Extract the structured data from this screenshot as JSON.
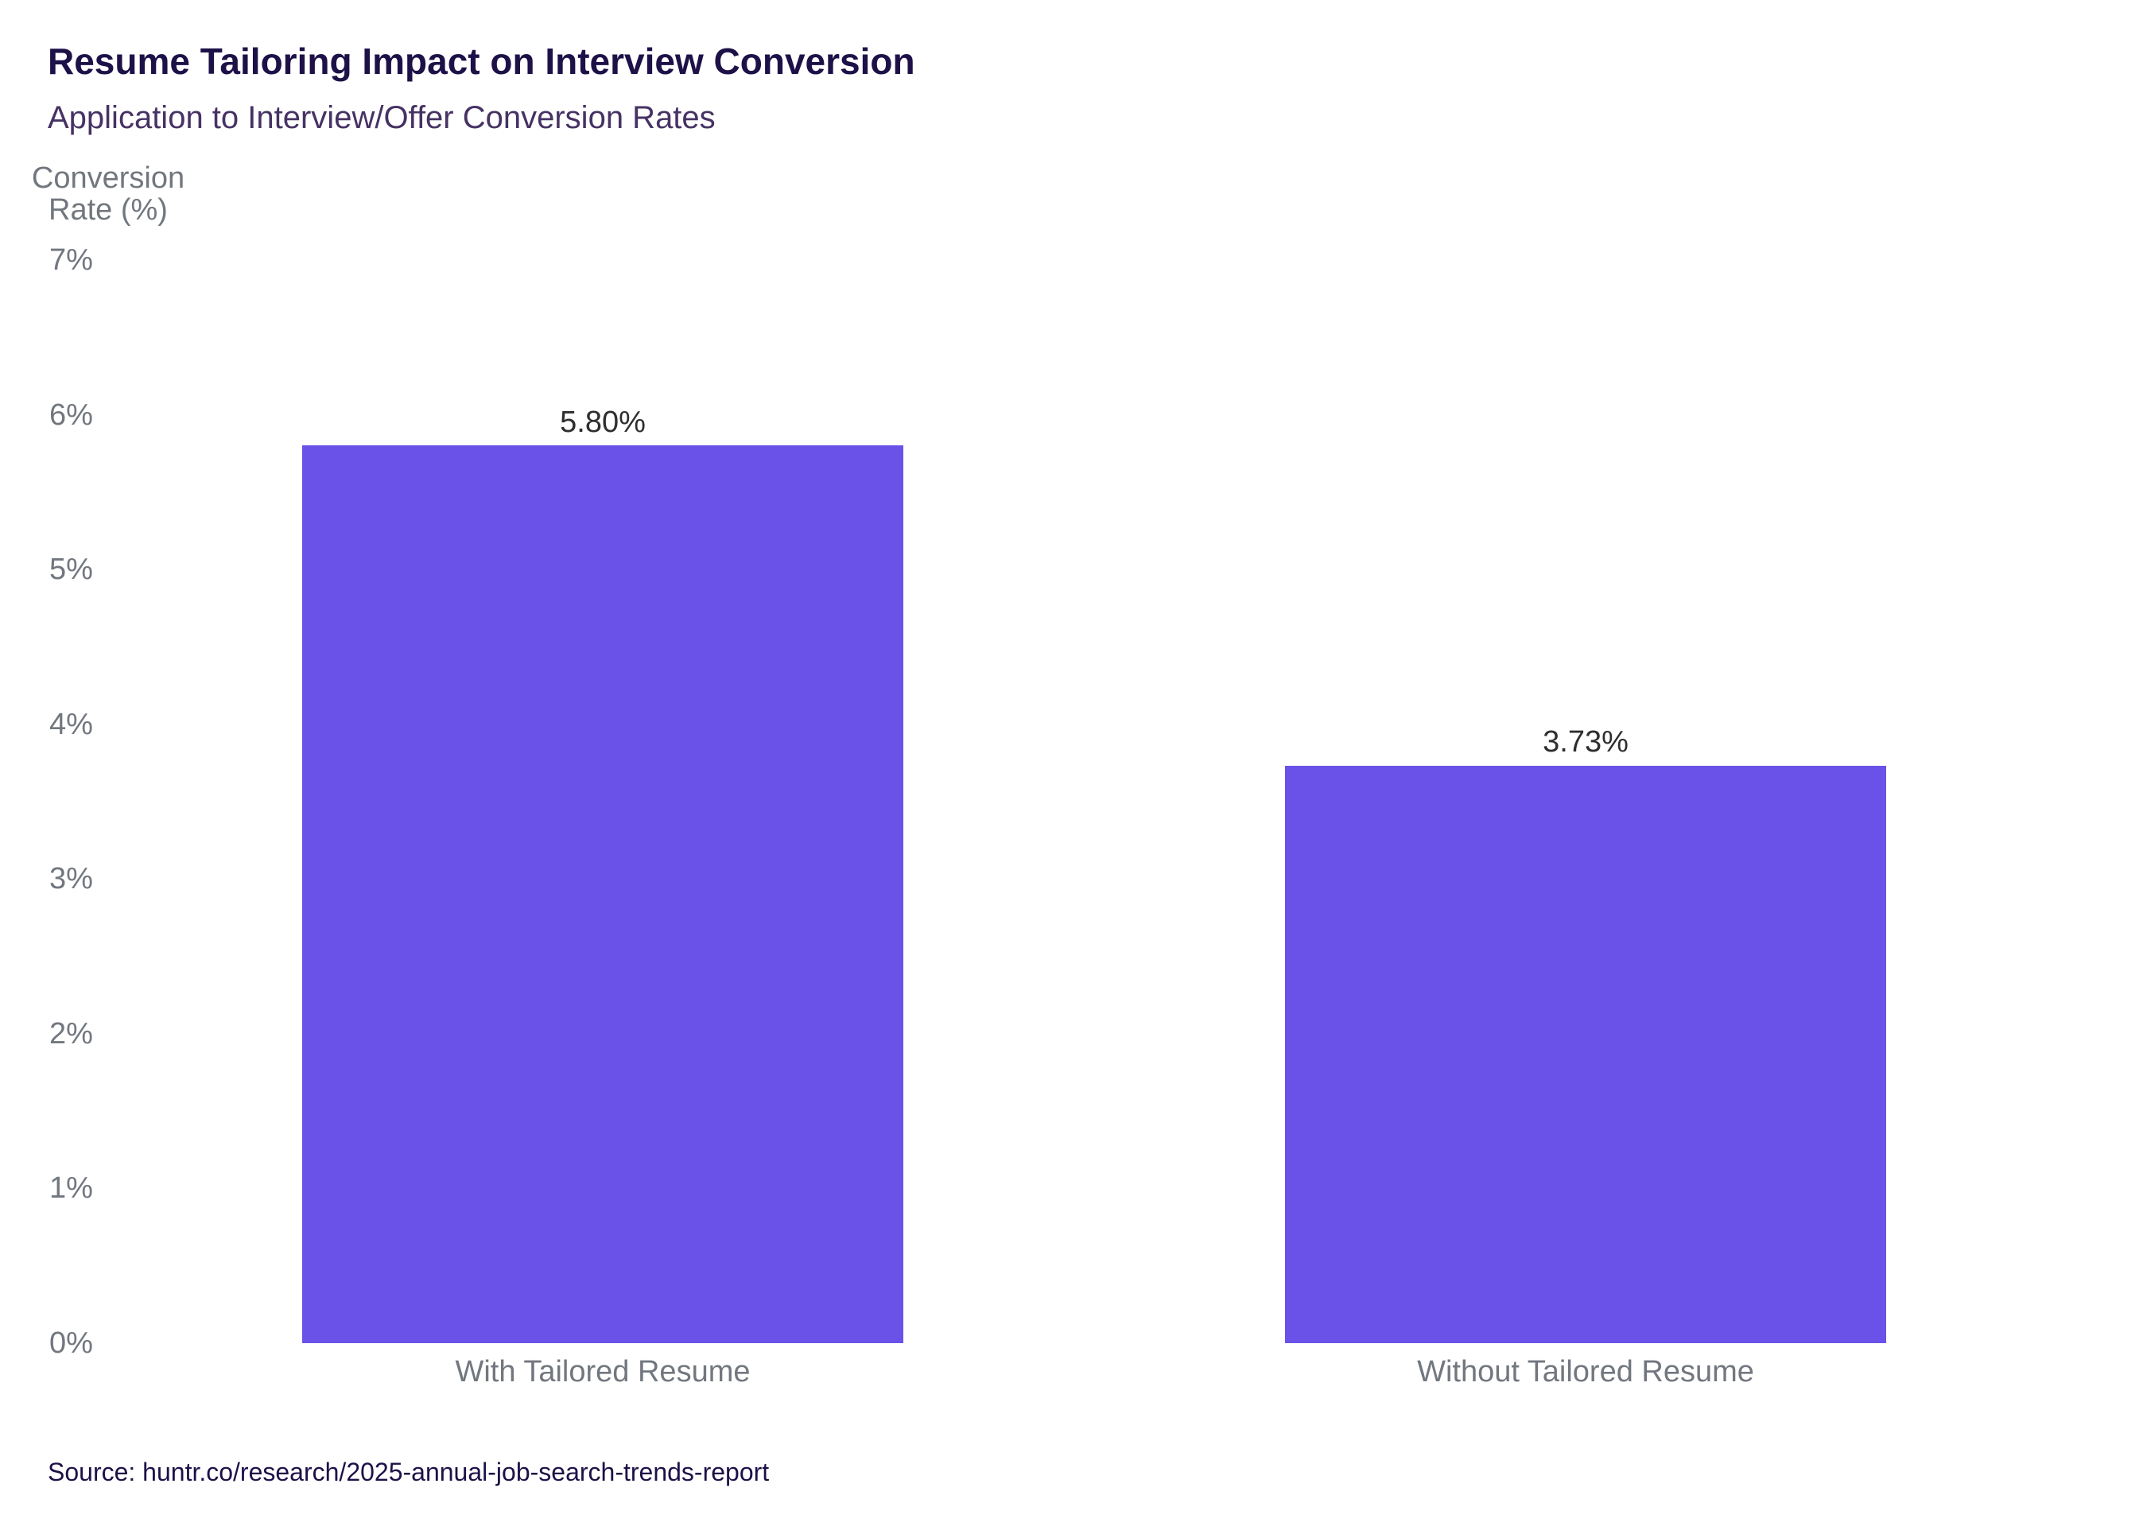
{
  "header": {
    "title": "Resume Tailoring Impact on Interview Conversion",
    "subtitle": "Application to Interview/Offer Conversion Rates"
  },
  "chart_data": {
    "type": "bar",
    "title": "Resume Tailoring Impact on Interview Conversion",
    "subtitle": "Application to Interview/Offer Conversion Rates",
    "categories": [
      "With Tailored Resume",
      "Without Tailored Resume"
    ],
    "values": [
      5.8,
      3.73
    ],
    "value_labels": [
      "5.80%",
      "3.73%"
    ],
    "ylabel": "Conversion Rate (%)",
    "ylabel_lines": [
      "Conversion",
      "Rate (%)"
    ],
    "yticks": [
      "0%",
      "1%",
      "2%",
      "3%",
      "4%",
      "5%",
      "6%",
      "7%"
    ],
    "ylim": [
      0,
      7
    ],
    "grid": false,
    "legend": false,
    "xlabel": ""
  },
  "source": {
    "label": "Source: huntr.co/research/2025-annual-job-search-trends-report"
  },
  "colors": {
    "bar": "#6A52E8",
    "title": "#1E1148",
    "subtitle": "#463264",
    "axis_text": "#72777F",
    "value_label": "#2E2E2E",
    "source_text": "#1E1148",
    "background": "#FFFFFF"
  }
}
